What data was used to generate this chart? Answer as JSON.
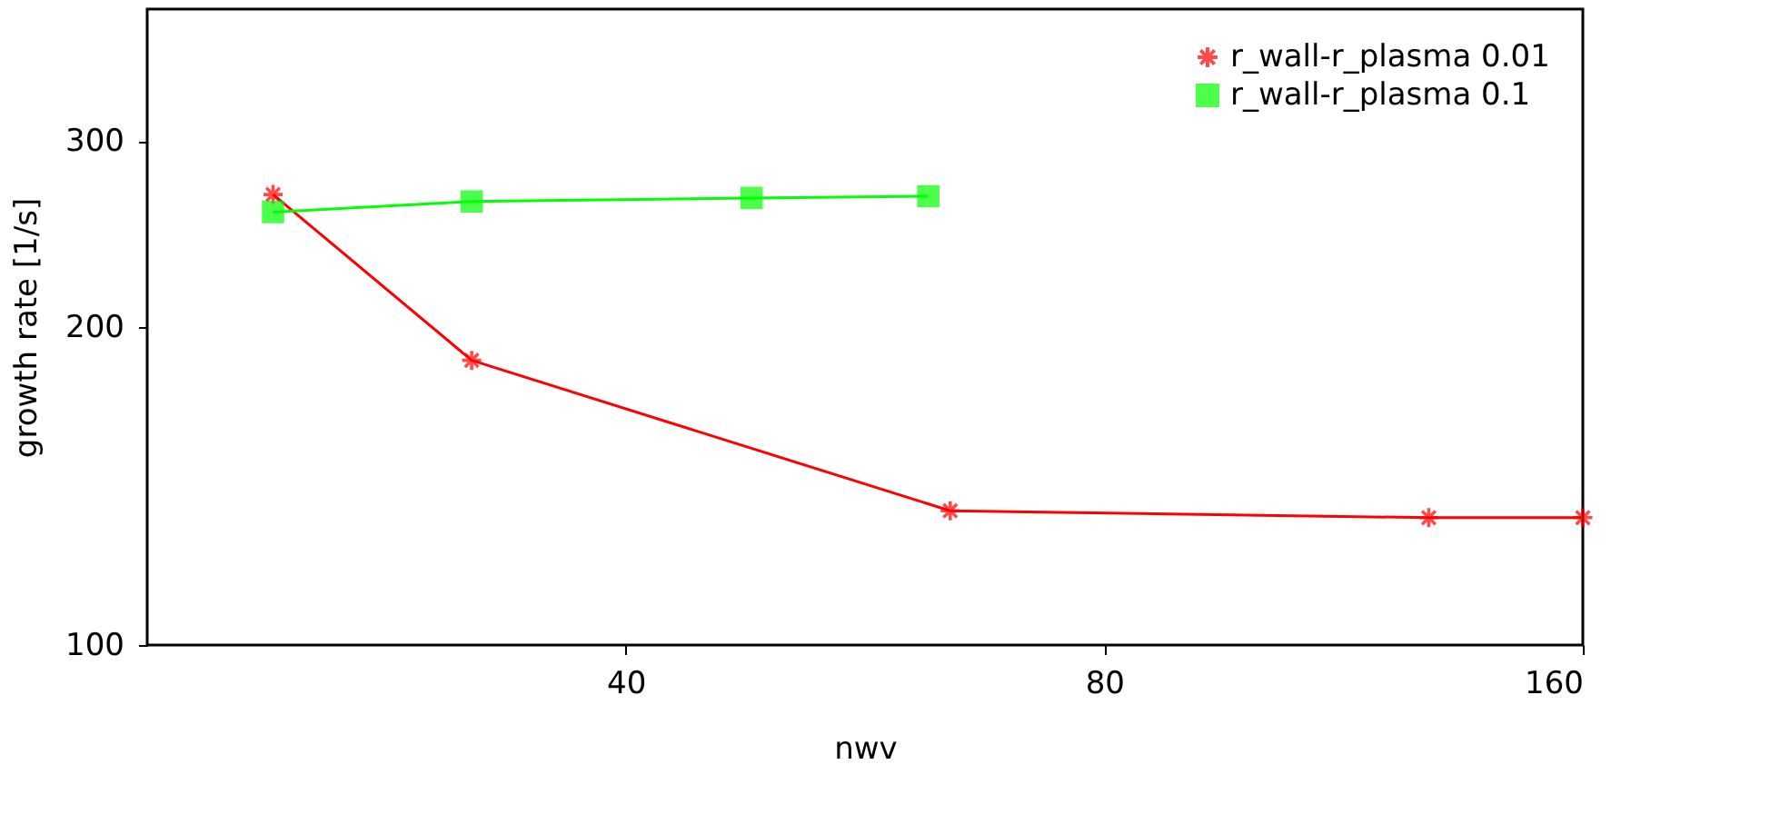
{
  "chart_data": {
    "type": "line",
    "xlabel": "nwv",
    "ylabel": "growth rate [1/s]",
    "log": "xy",
    "grid": false,
    "legend": "top right",
    "xlim": [
      20,
      160
    ],
    "xticks": [
      40,
      80,
      160
    ],
    "ylim": [
      100,
      400
    ],
    "yticks": [
      100,
      200,
      300
    ],
    "line_style": "solid",
    "series": [
      {
        "name": "r_wall-r_plasma 0.01",
        "color": "#ff0000",
        "marker": "cross",
        "x": [
          24,
          32,
          64,
          128,
          160
        ],
        "values": [
          267,
          186,
          134,
          132,
          132
        ]
      },
      {
        "name": "r_wall-r_plasma 0.1",
        "color": "#00ff00",
        "marker": "square",
        "x": [
          24,
          32,
          48,
          62
        ],
        "values": [
          257,
          263,
          265,
          266
        ]
      }
    ]
  }
}
